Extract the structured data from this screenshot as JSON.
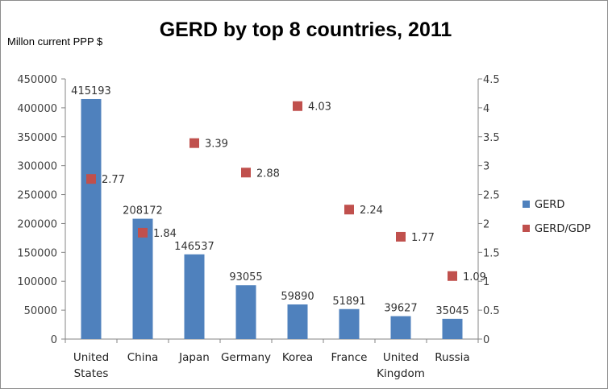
{
  "chart_data": {
    "type": "bar",
    "title": "GERD by top 8 countries, 2011",
    "ylabel": "Millon current PPP $",
    "categories": [
      [
        "United",
        "States"
      ],
      [
        "China"
      ],
      [
        "Japan"
      ],
      [
        "Germany"
      ],
      [
        "Korea"
      ],
      [
        "France"
      ],
      [
        "United",
        "Kingdom"
      ],
      [
        "Russia"
      ]
    ],
    "series": [
      {
        "name": "GERD",
        "type": "bar",
        "axis": "left",
        "color": "#4f81bd",
        "values": [
          415193,
          208172,
          146537,
          93055,
          59890,
          51891,
          39627,
          35045
        ]
      },
      {
        "name": "GERD/GDP",
        "type": "scatter",
        "axis": "right",
        "color": "#c0504d",
        "values": [
          2.77,
          1.84,
          3.39,
          2.88,
          4.03,
          2.24,
          1.77,
          1.09
        ],
        "labels": [
          "2.77",
          "1.84",
          "3.39",
          "2.88",
          "4.03",
          "2.24",
          "1.77",
          "1.09"
        ]
      }
    ],
    "ylim": [
      0,
      450000
    ],
    "yticks": [
      "0",
      "50000",
      "100000",
      "150000",
      "200000",
      "250000",
      "300000",
      "350000",
      "400000",
      "450000"
    ],
    "y2lim": [
      0,
      4.5
    ],
    "y2ticks": [
      "0",
      "0.5",
      "1",
      "1.5",
      "2",
      "2.5",
      "3",
      "3.5",
      "4",
      "4.5"
    ],
    "grid": false,
    "legend": "right"
  }
}
